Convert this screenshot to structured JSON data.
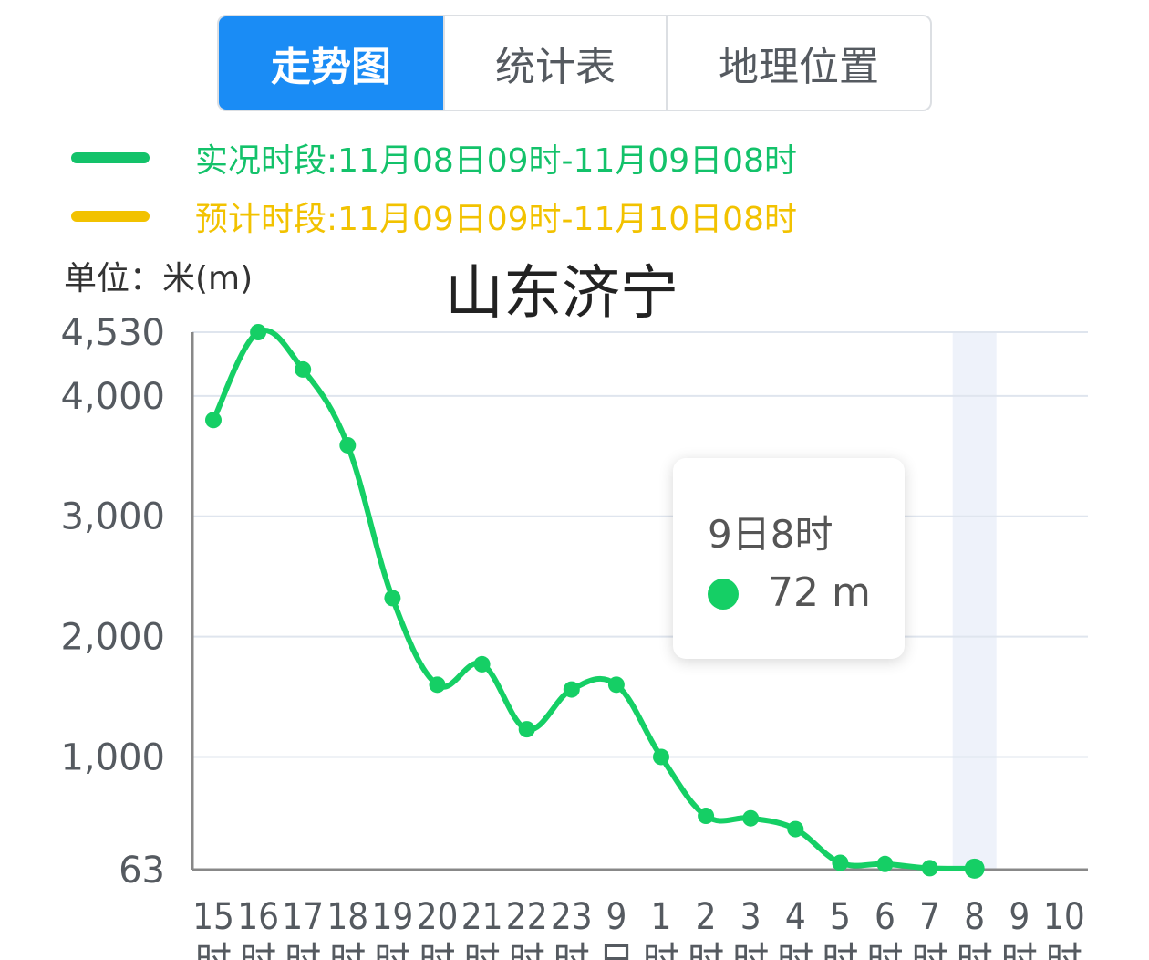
{
  "tabs": [
    {
      "label": "走势图",
      "active": true
    },
    {
      "label": "统计表",
      "active": false
    },
    {
      "label": "地理位置",
      "active": false
    }
  ],
  "legend": [
    {
      "text": "实况时段:11月08日09时-11月09日08时",
      "color": "#13c26a"
    },
    {
      "text": "预计时段:11月09日09时-11月10日08时",
      "color": "#f2c200"
    }
  ],
  "unit_label": "单位：米(m)",
  "tooltip": {
    "title": "9日8时",
    "value": "72 m",
    "color": "#15cf65"
  },
  "chart_data": {
    "type": "line",
    "title": "山东济宁",
    "ylabel": "单位：米(m)",
    "ylim": [
      63,
      4530
    ],
    "yticks": [
      63,
      1000,
      2000,
      3000,
      4000,
      4530
    ],
    "ytick_labels": [
      "63",
      "1,000",
      "2,000",
      "3,000",
      "4,000",
      "4,530"
    ],
    "categories": [
      {
        "top": "15",
        "bottom": "时"
      },
      {
        "top": "16",
        "bottom": "时"
      },
      {
        "top": "17",
        "bottom": "时"
      },
      {
        "top": "18",
        "bottom": "时"
      },
      {
        "top": "19",
        "bottom": "时"
      },
      {
        "top": "20",
        "bottom": "时"
      },
      {
        "top": "21",
        "bottom": "时"
      },
      {
        "top": "22",
        "bottom": "时"
      },
      {
        "top": "23",
        "bottom": "时"
      },
      {
        "top": "9",
        "bottom": "日"
      },
      {
        "top": "1",
        "bottom": "时"
      },
      {
        "top": "2",
        "bottom": "时"
      },
      {
        "top": "3",
        "bottom": "时"
      },
      {
        "top": "4",
        "bottom": "时"
      },
      {
        "top": "5",
        "bottom": "时"
      },
      {
        "top": "6",
        "bottom": "时"
      },
      {
        "top": "7",
        "bottom": "时"
      },
      {
        "top": "8",
        "bottom": "时"
      },
      {
        "top": "9",
        "bottom": "时"
      },
      {
        "top": "10",
        "bottom": "时"
      }
    ],
    "series": [
      {
        "values": [
          3800,
          4530,
          4220,
          3590,
          2320,
          1600,
          1770,
          1230,
          1560,
          1600,
          1000,
          510,
          490,
          400,
          120,
          110,
          75,
          72,
          null,
          null
        ],
        "color": "#15cf65"
      }
    ],
    "highlight_index": 17,
    "grid": true
  }
}
